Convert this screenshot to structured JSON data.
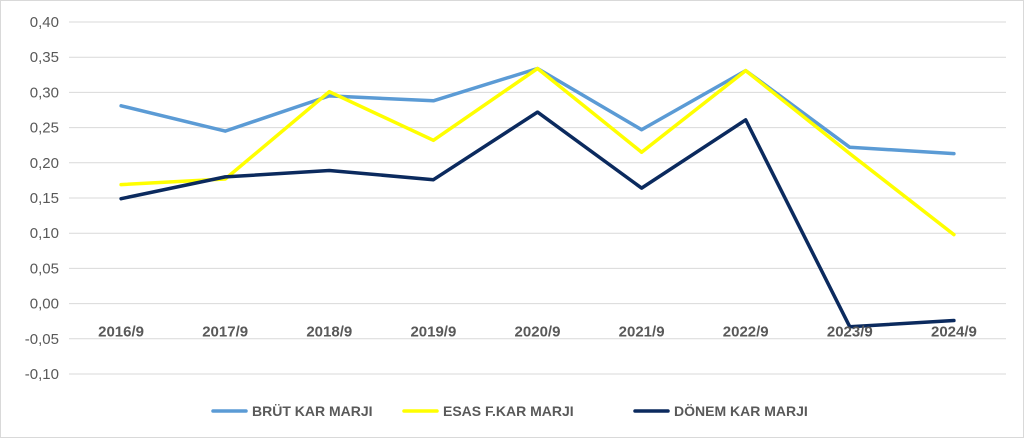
{
  "chart_data": {
    "type": "line",
    "title": "",
    "xlabel": "",
    "ylabel": "",
    "categories": [
      "2016/9",
      "2017/9",
      "2018/9",
      "2019/9",
      "2020/9",
      "2021/9",
      "2022/9",
      "2023/9",
      "2024/9"
    ],
    "ylim": [
      -0.1,
      0.4
    ],
    "yticks": [
      0.4,
      0.35,
      0.3,
      0.25,
      0.2,
      0.15,
      0.1,
      0.05,
      0.0,
      -0.05,
      -0.1
    ],
    "ytick_labels": [
      "0,40",
      "0,35",
      "0,30",
      "0,25",
      "0,20",
      "0,15",
      "0,10",
      "0,05",
      "0,00",
      "-0,05",
      "-0,10"
    ],
    "grid": true,
    "legend_position": "bottom",
    "series": [
      {
        "name": "BRÜT KAR MARJI",
        "color": "#5b9bd5",
        "values": [
          0.281,
          0.245,
          0.295,
          0.288,
          0.334,
          0.247,
          0.331,
          0.222,
          0.213
        ]
      },
      {
        "name": "ESAS F.KAR MARJI",
        "color": "#ffff00",
        "values": [
          0.169,
          0.177,
          0.301,
          0.232,
          0.334,
          0.215,
          0.331,
          0.213,
          0.098
        ]
      },
      {
        "name": "DÖNEM KAR MARJI",
        "color": "#0b2a5e",
        "values": [
          0.149,
          0.18,
          0.189,
          0.176,
          0.272,
          0.164,
          0.261,
          -0.033,
          -0.024
        ]
      }
    ]
  }
}
